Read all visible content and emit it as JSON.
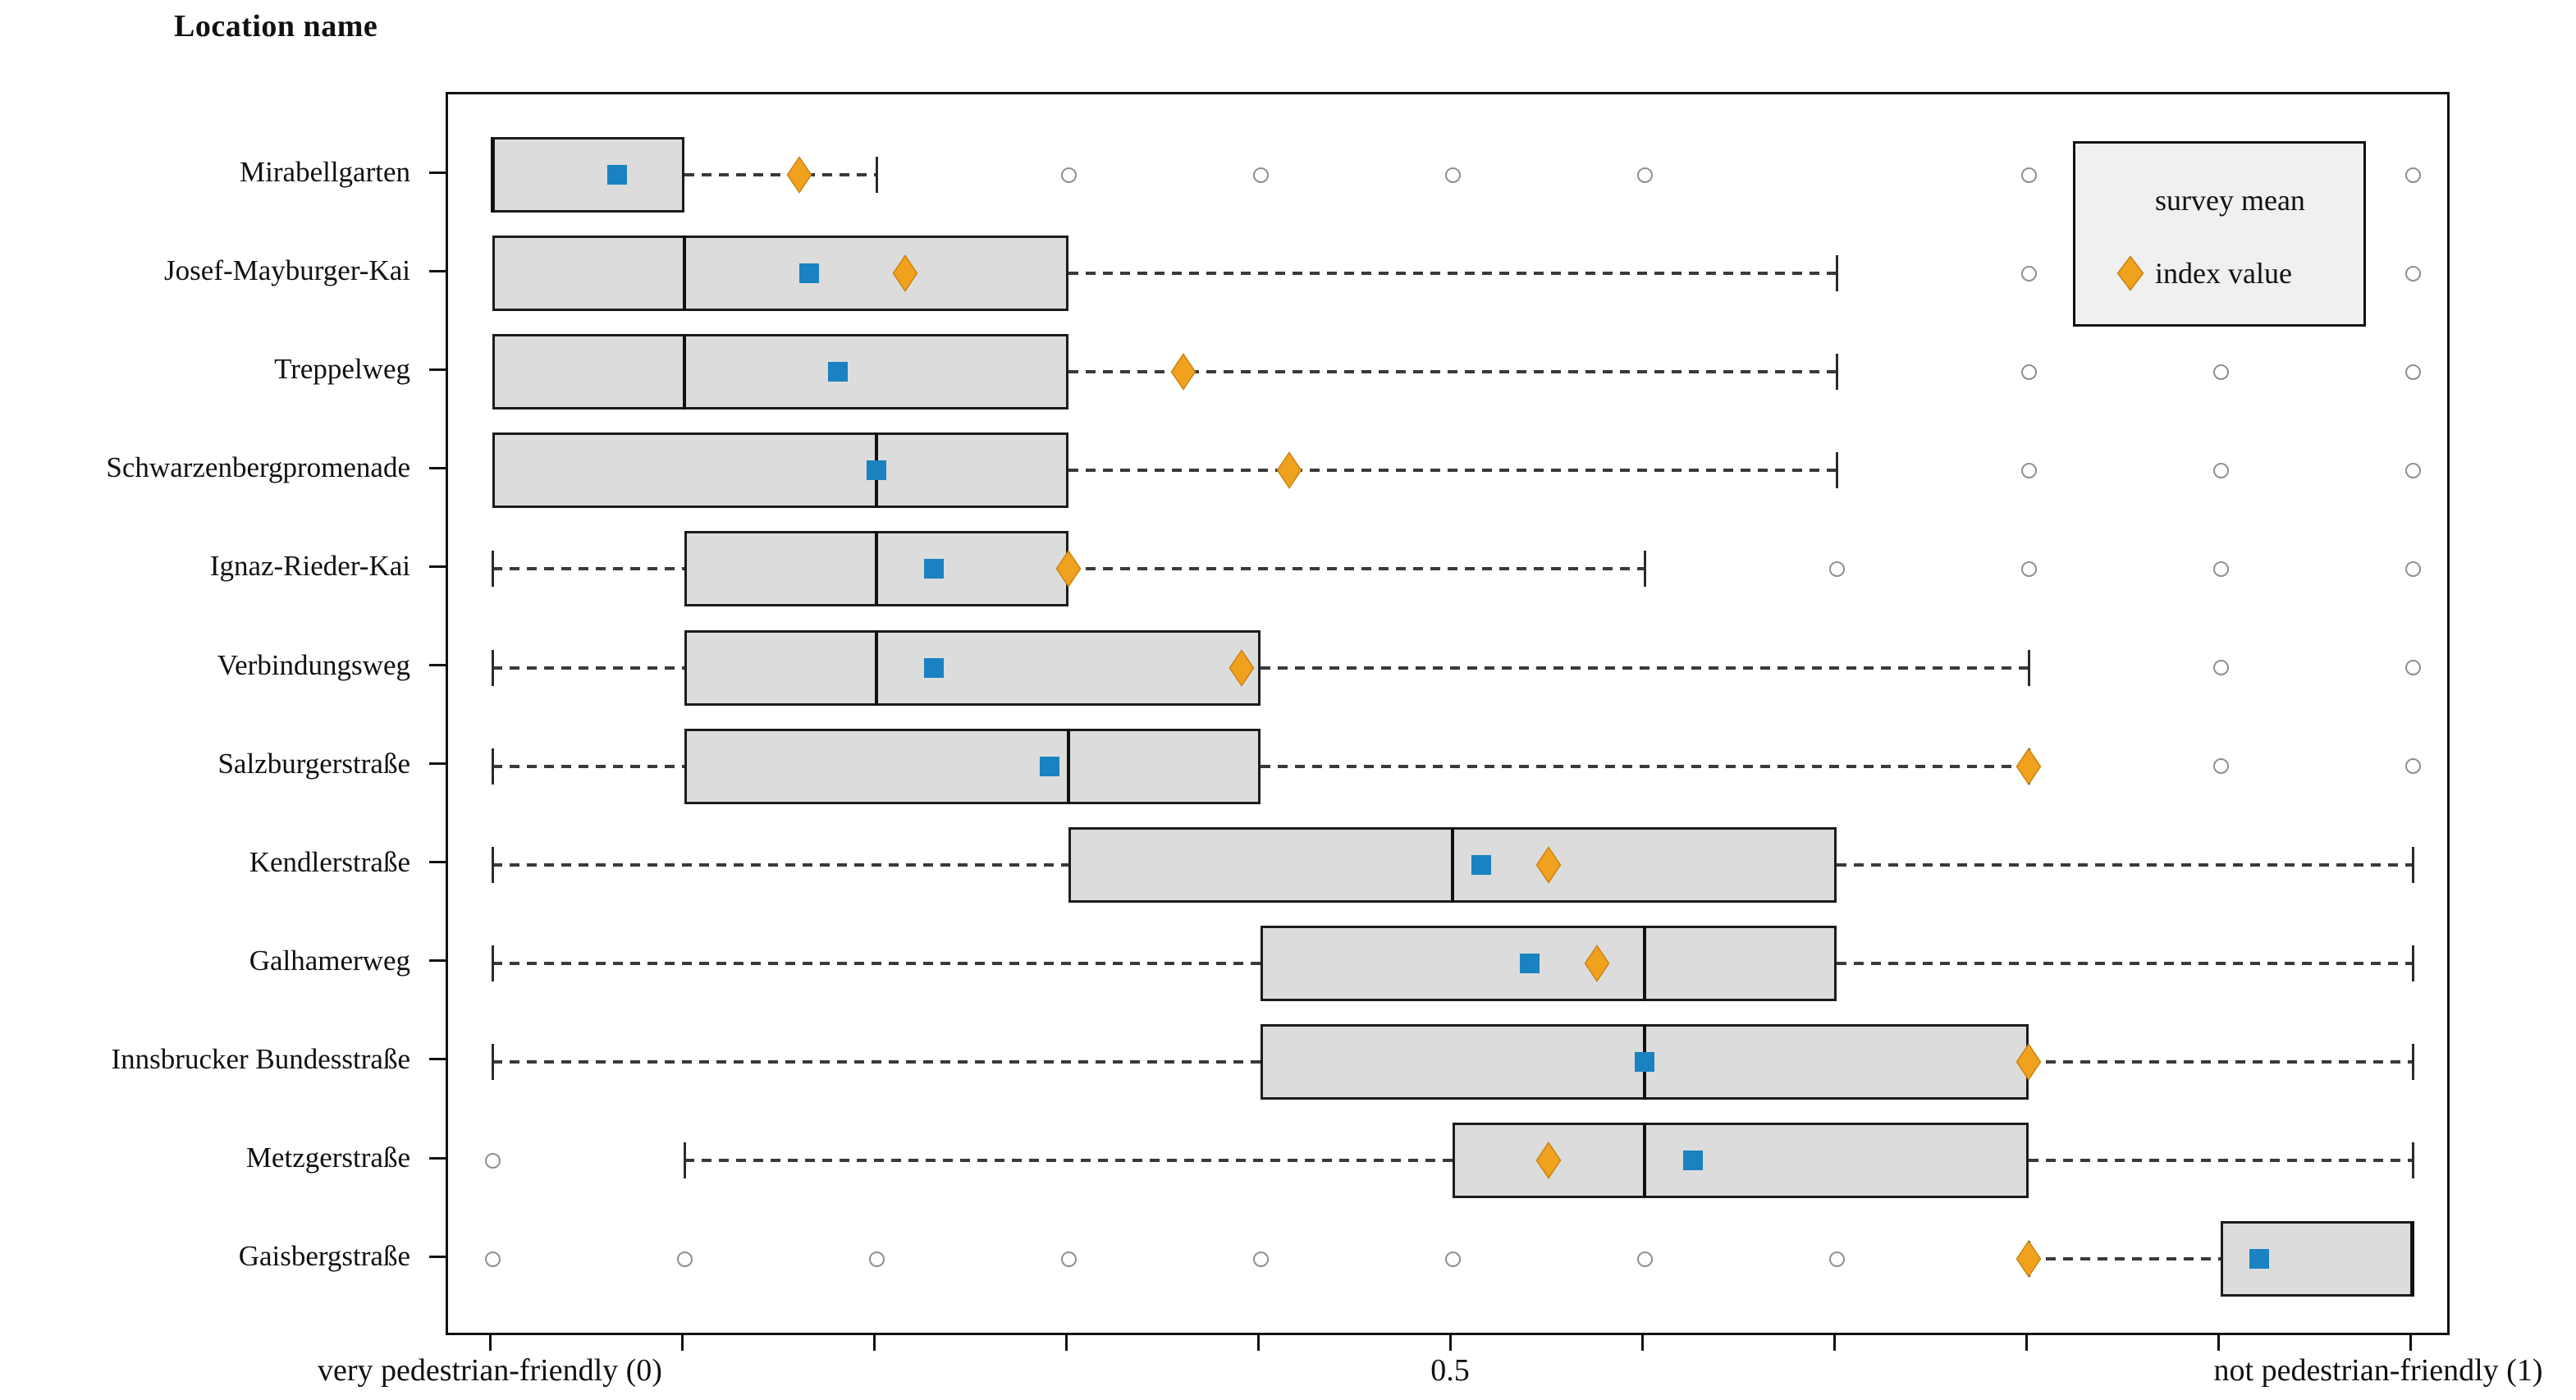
{
  "title": "Location name",
  "axis": {
    "x_left_label": "very pedestrian-friendly (0)",
    "x_mid_label": "0.5",
    "x_right_label": "not pedestrian-friendly (1)",
    "x_min": 0,
    "x_max": 1,
    "tick_step": 0.1
  },
  "legend": {
    "items": [
      {
        "label": "survey mean",
        "marker": "square-icon",
        "color": "#1a82c0"
      },
      {
        "label": "index value",
        "marker": "diamond-icon",
        "color": "#f0a21f"
      }
    ]
  },
  "colors": {
    "box_fill": "#dcdcdc",
    "box_edge": "#1c1c1c",
    "median": "#111111",
    "whisker": "#3a3a3a",
    "outlier_edge": "#8f8f8f",
    "survey_mean": "#1a82c0",
    "index_value": "#f0a21f",
    "index_value_edge": "#c9830f",
    "legend_bg": "#f0f0f0",
    "plot_border": "#111111"
  },
  "chart_data": {
    "type": "boxplot-horizontal",
    "title": "Location name",
    "xlabel_left": "very pedestrian-friendly (0)",
    "xlabel_right": "not pedestrian-friendly (1)",
    "xlim": [
      0,
      1
    ],
    "xticks": [
      0,
      0.1,
      0.2,
      0.3,
      0.4,
      0.5,
      0.6,
      0.7,
      0.8,
      0.9,
      1.0
    ],
    "labeled_tick": 0.5,
    "grid": false,
    "legend_position": "top-right",
    "categories": [
      "Mirabellgarten",
      "Josef-Mayburger-Kai",
      "Treppelweg",
      "Schwarzenbergpromenade",
      "Ignaz-Rieder-Kai",
      "Verbindungsweg",
      "Salzburgerstraße",
      "Kendlerstraße",
      "Galhamerweg",
      "Innsbrucker Bundesstraße",
      "Metzgerstraße",
      "Gaisbergstraße"
    ],
    "boxes": [
      {
        "location": "Mirabellgarten",
        "whisker_low": null,
        "q1": 0.0,
        "median": 0.0,
        "q3": 0.1,
        "whisker_high": 0.2,
        "outliers": [
          0.3,
          0.4,
          0.5,
          0.6,
          0.8,
          1.0
        ]
      },
      {
        "location": "Josef-Mayburger-Kai",
        "whisker_low": null,
        "q1": 0.0,
        "median": 0.1,
        "q3": 0.3,
        "whisker_high": 0.7,
        "outliers": [
          0.8,
          1.0
        ]
      },
      {
        "location": "Treppelweg",
        "whisker_low": null,
        "q1": 0.0,
        "median": 0.1,
        "q3": 0.3,
        "whisker_high": 0.7,
        "outliers": [
          0.8,
          0.9,
          1.0
        ]
      },
      {
        "location": "Schwarzenbergpromenade",
        "whisker_low": null,
        "q1": 0.0,
        "median": 0.2,
        "q3": 0.3,
        "whisker_high": 0.7,
        "outliers": [
          0.8,
          0.9,
          1.0
        ]
      },
      {
        "location": "Ignaz-Rieder-Kai",
        "whisker_low": 0.0,
        "q1": 0.1,
        "median": 0.2,
        "q3": 0.3,
        "whisker_high": 0.6,
        "outliers": [
          0.7,
          0.8,
          0.9,
          1.0
        ]
      },
      {
        "location": "Verbindungsweg",
        "whisker_low": 0.0,
        "q1": 0.1,
        "median": 0.2,
        "q3": 0.4,
        "whisker_high": 0.8,
        "outliers": [
          0.9,
          1.0
        ]
      },
      {
        "location": "Salzburgerstraße",
        "whisker_low": 0.0,
        "q1": 0.1,
        "median": 0.3,
        "q3": 0.4,
        "whisker_high": 0.8,
        "outliers": [
          0.9,
          1.0
        ]
      },
      {
        "location": "Kendlerstraße",
        "whisker_low": 0.0,
        "q1": 0.3,
        "median": 0.5,
        "q3": 0.7,
        "whisker_high": 1.0,
        "outliers": []
      },
      {
        "location": "Galhamerweg",
        "whisker_low": 0.0,
        "q1": 0.4,
        "median": 0.6,
        "q3": 0.7,
        "whisker_high": 1.0,
        "outliers": []
      },
      {
        "location": "Innsbrucker Bundesstraße",
        "whisker_low": 0.0,
        "q1": 0.4,
        "median": 0.6,
        "q3": 0.8,
        "whisker_high": 1.0,
        "outliers": []
      },
      {
        "location": "Metzgerstraße",
        "whisker_low": 0.1,
        "q1": 0.5,
        "median": 0.6,
        "q3": 0.8,
        "whisker_high": 1.0,
        "outliers": [
          0.0
        ]
      },
      {
        "location": "Gaisbergstraße",
        "whisker_low": 0.8,
        "q1": 0.9,
        "median": 1.0,
        "q3": 1.0,
        "whisker_high": null,
        "outliers": [
          0.0,
          0.1,
          0.2,
          0.3,
          0.4,
          0.5,
          0.6,
          0.7
        ]
      }
    ],
    "series": [
      {
        "name": "survey mean",
        "marker": "square",
        "values": [
          0.065,
          0.165,
          0.18,
          0.2,
          0.23,
          0.23,
          0.29,
          0.515,
          0.54,
          0.6,
          0.625,
          0.92
        ]
      },
      {
        "name": "index value",
        "marker": "diamond",
        "values": [
          0.16,
          0.215,
          0.36,
          0.415,
          0.3,
          0.39,
          0.8,
          0.55,
          0.575,
          0.8,
          0.55,
          0.8
        ]
      }
    ]
  }
}
